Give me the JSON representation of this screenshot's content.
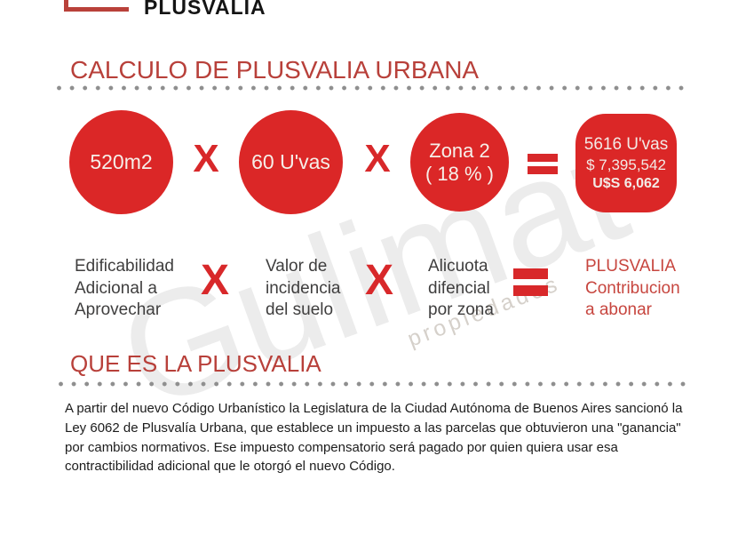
{
  "header": {
    "brand": "PLUSVALIA"
  },
  "calc": {
    "title": "CALCULO DE PLUSVALIA URBANA",
    "multiply_symbol": "X",
    "circle1_lines": [
      "520m2"
    ],
    "circle2_lines": [
      "60 U'vas"
    ],
    "circle3_lines": [
      "Zona 2",
      "( 18 % )"
    ],
    "result_line1": "5616 U'vas",
    "result_line2": "$ 7,395,542",
    "result_line3": "U$S 6,062",
    "label1_lines": [
      "Edificabilidad",
      "Adicional a",
      "Aprovechar"
    ],
    "label2_lines": [
      "Valor de",
      "incidencia",
      "del suelo"
    ],
    "label3_lines": [
      "Alicuota",
      "difencial",
      "por zona"
    ],
    "result_label_lines": [
      "PLUSVALIA",
      "Contribucion",
      "a abonar"
    ]
  },
  "info": {
    "title": "QUE ES LA PLUSVALIA",
    "paragraph_lines": [
      "A partir del nuevo Código Urbanístico la Legislatura de la Ciudad Autónoma de Buenos Aires sancionó la",
      "Ley 6062 de Plusvalía Urbana, que establece un impuesto a las parcelas que obtuvieron una \"ganancia\"",
      "por cambios normativos. Ese impuesto compensatorio será pagado por quien quiera usar esa",
      "contractibilidad adicional que le otorgó el nuevo Código."
    ]
  },
  "watermark": {
    "text": "Gulimat",
    "subtext": "propiedades"
  },
  "colors": {
    "circle_red": "#db2727",
    "operator_red": "#d8282a",
    "heading_red": "#b8403a",
    "result_label_red": "#c7463f",
    "logo_red": "#b9413a",
    "label_gray": "#3f3e3e",
    "dot_gray": "#8f8f8f"
  }
}
